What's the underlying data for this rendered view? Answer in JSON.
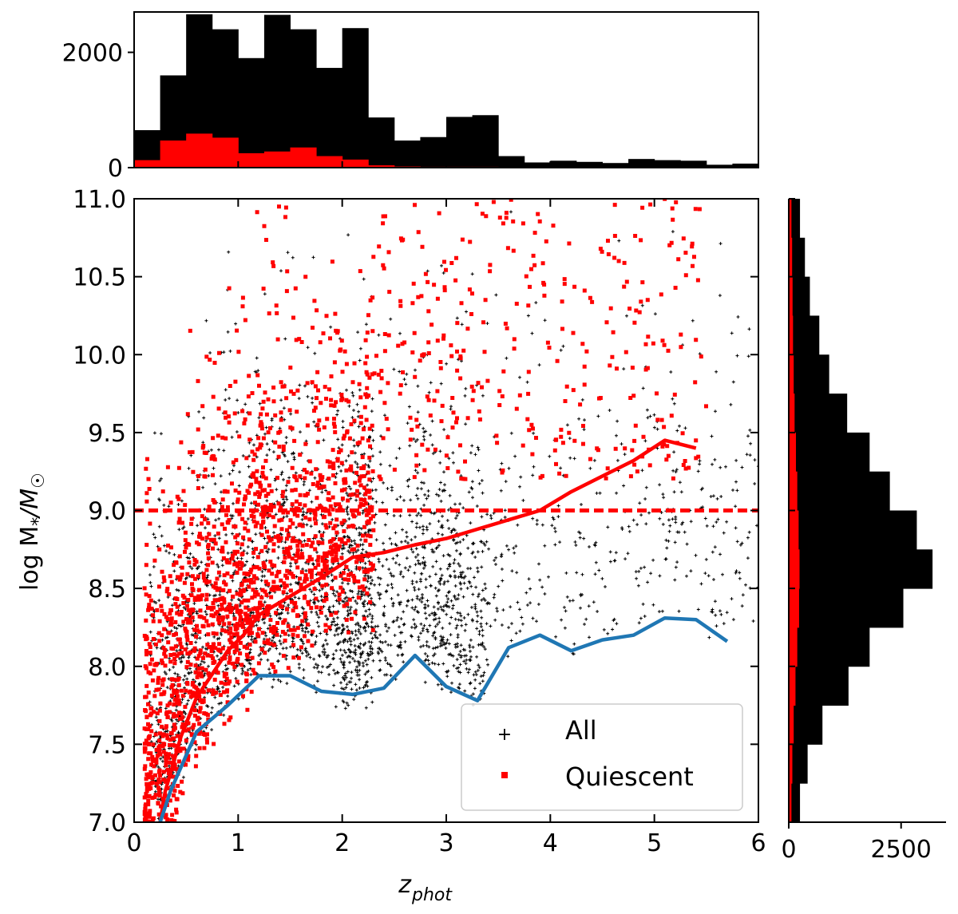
{
  "chart_data": [
    {
      "id": "main-scatter",
      "type": "scatter",
      "xlabel_main": "z",
      "xlabel_sub": "phot",
      "ylabel": "log M",
      "ylabel_sub1": "*",
      "ylabel_mid": "/M",
      "ylabel_sub2": "☉",
      "xlim": [
        0,
        6
      ],
      "ylim": [
        7.0,
        11.0
      ],
      "xticks": [
        0,
        1,
        2,
        3,
        4,
        5,
        6
      ],
      "xtick_labels": [
        "0",
        "1",
        "2",
        "3",
        "4",
        "5",
        "6"
      ],
      "yticks": [
        7.0,
        7.5,
        8.0,
        8.5,
        9.0,
        9.5,
        10.0,
        10.5,
        11.0
      ],
      "ytick_labels": [
        "7.0",
        "7.5",
        "8.0",
        "8.5",
        "9.0",
        "9.5",
        "10.0",
        "10.5",
        "11.0"
      ],
      "legend": {
        "placement": "bottom-right",
        "entries": [
          {
            "label": "All",
            "marker": "+",
            "color": "#000000"
          },
          {
            "label": "Quiescent",
            "marker": "square",
            "color": "#ff0000"
          }
        ]
      },
      "series": [
        {
          "name": "Quiescent mass limit",
          "style": "line",
          "color": "#ff0000",
          "x": [
            0.25,
            0.3,
            0.45,
            0.6,
            0.75,
            0.9,
            1.05,
            1.2,
            1.5,
            1.8,
            2.1,
            2.4,
            2.7,
            3.0,
            3.3,
            3.6,
            3.9,
            4.2,
            4.5,
            4.8,
            5.1,
            5.4
          ],
          "y": [
            7.0,
            7.2,
            7.55,
            7.8,
            7.95,
            8.1,
            8.2,
            8.33,
            8.45,
            8.57,
            8.7,
            8.73,
            8.78,
            8.82,
            8.88,
            8.94,
            9.0,
            9.12,
            9.22,
            9.32,
            9.45,
            9.4
          ]
        },
        {
          "name": "All mass limit",
          "style": "line",
          "color": "#1f77b4",
          "x": [
            0.25,
            0.35,
            0.6,
            0.9,
            1.2,
            1.5,
            1.8,
            2.1,
            2.4,
            2.7,
            3.0,
            3.3,
            3.6,
            3.9,
            4.2,
            4.5,
            4.8,
            5.1,
            5.4,
            5.7
          ],
          "y": [
            7.0,
            7.2,
            7.58,
            7.75,
            7.94,
            7.94,
            7.84,
            7.82,
            7.86,
            8.07,
            7.87,
            7.78,
            8.12,
            8.2,
            8.1,
            8.17,
            8.2,
            8.31,
            8.3,
            8.16
          ]
        },
        {
          "name": "Mass cut",
          "style": "dashed",
          "color": "#ff0000",
          "x": [
            0,
            6
          ],
          "y": [
            9.0,
            9.0
          ]
        }
      ]
    },
    {
      "id": "top-histogram",
      "type": "bar",
      "orientation": "vertical",
      "xlim": [
        0,
        6
      ],
      "ylim": [
        0,
        2700
      ],
      "yticks": [
        0,
        2000
      ],
      "ytick_labels": [
        "0",
        "2000"
      ],
      "bin_width": 0.25,
      "bin_starts": [
        0,
        0.25,
        0.5,
        0.75,
        1.0,
        1.25,
        1.5,
        1.75,
        2.0,
        2.25,
        2.5,
        2.75,
        3.0,
        3.25,
        3.5,
        3.75,
        4.0,
        4.25,
        4.5,
        4.75,
        5.0,
        5.25,
        5.5,
        5.75
      ],
      "series": [
        {
          "name": "All",
          "color": "#000000",
          "values": [
            650,
            1600,
            2660,
            2400,
            1900,
            2650,
            2400,
            1730,
            2420,
            870,
            470,
            530,
            880,
            910,
            200,
            90,
            120,
            100,
            80,
            150,
            130,
            120,
            50,
            70
          ]
        },
        {
          "name": "Quiescent",
          "color": "#ff0000",
          "values": [
            130,
            470,
            590,
            520,
            250,
            280,
            350,
            200,
            140,
            40,
            20,
            15,
            15,
            15,
            10,
            8,
            8,
            6,
            5,
            5,
            5,
            4,
            3,
            3
          ]
        }
      ]
    },
    {
      "id": "right-histogram",
      "type": "bar",
      "orientation": "horizontal",
      "ylim": [
        7.0,
        11.0
      ],
      "xlim": [
        0,
        3500
      ],
      "xticks": [
        0,
        2500
      ],
      "xtick_labels": [
        "0",
        "2500"
      ],
      "bin_width": 0.25,
      "bin_starts": [
        7.0,
        7.25,
        7.5,
        7.75,
        8.0,
        8.25,
        8.5,
        8.75,
        9.0,
        9.25,
        9.5,
        9.75,
        10.0,
        10.25,
        10.5,
        10.75
      ],
      "series": [
        {
          "name": "All",
          "color": "#000000",
          "values": [
            250,
            420,
            750,
            1330,
            1800,
            2550,
            3200,
            2850,
            2250,
            1800,
            1300,
            900,
            680,
            470,
            360,
            250
          ]
        },
        {
          "name": "Quiescent",
          "color": "#ff0000",
          "values": [
            60,
            80,
            110,
            150,
            190,
            230,
            240,
            220,
            190,
            160,
            130,
            110,
            95,
            85,
            75,
            60
          ]
        }
      ]
    }
  ]
}
